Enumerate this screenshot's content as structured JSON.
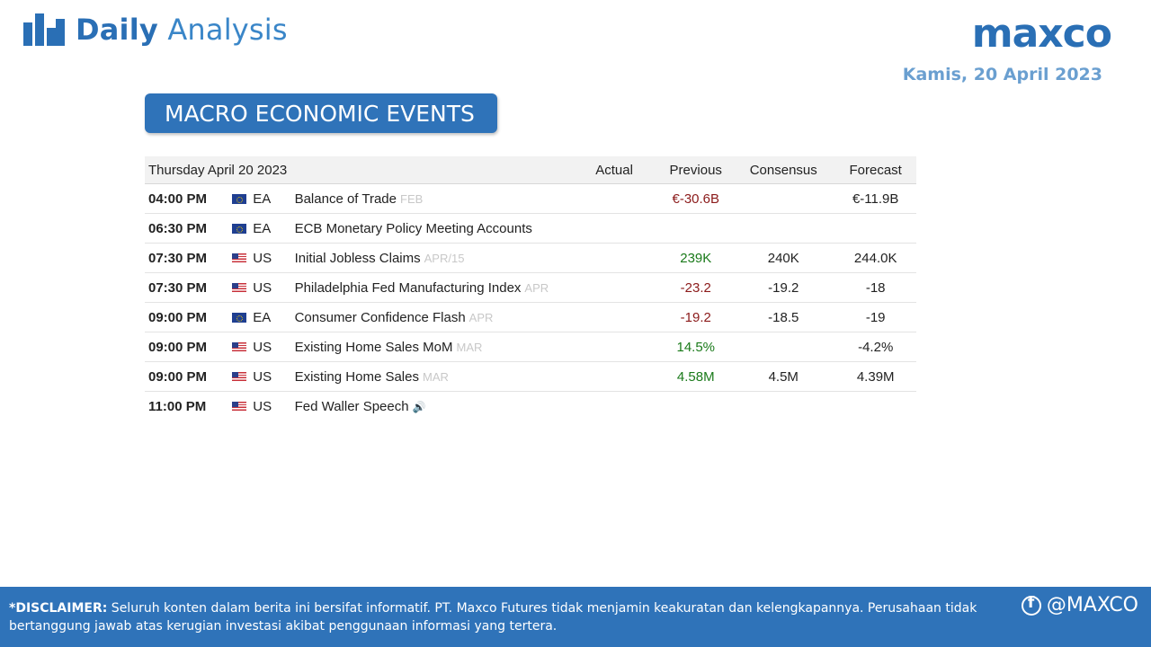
{
  "header": {
    "title_bold": "Daily",
    "title_light": "Analysis",
    "logo_text": "maxco",
    "date": "Kamis, 20 April 2023"
  },
  "section": {
    "title": "MACRO ECONOMIC EVENTS"
  },
  "calendar": {
    "date_label": "Thursday April 20 2023",
    "columns": {
      "actual": "Actual",
      "previous": "Previous",
      "consensus": "Consensus",
      "forecast": "Forecast"
    },
    "rows": [
      {
        "time": "04:00 PM",
        "flag": "eu-flag-icon",
        "currency": "EA",
        "event": "Balance of Trade",
        "period": "FEB",
        "actual": "",
        "previous": "€-30.6B",
        "previous_trend": "neg",
        "consensus": "",
        "forecast": "€-11.9B"
      },
      {
        "time": "06:30 PM",
        "flag": "eu-flag-icon",
        "currency": "EA",
        "event": "ECB Monetary Policy Meeting Accounts",
        "period": "",
        "actual": "",
        "previous": "",
        "previous_trend": "",
        "consensus": "",
        "forecast": ""
      },
      {
        "time": "07:30 PM",
        "flag": "us-flag-icon",
        "currency": "US",
        "event": "Initial Jobless Claims",
        "period": "APR/15",
        "actual": "",
        "previous": "239K",
        "previous_trend": "pos",
        "consensus": "240K",
        "forecast": "244.0K"
      },
      {
        "time": "07:30 PM",
        "flag": "us-flag-icon",
        "currency": "US",
        "event": "Philadelphia Fed Manufacturing Index",
        "period": "APR",
        "actual": "",
        "previous": "-23.2",
        "previous_trend": "neg",
        "consensus": "-19.2",
        "forecast": "-18"
      },
      {
        "time": "09:00 PM",
        "flag": "eu-flag-icon",
        "currency": "EA",
        "event": "Consumer Confidence Flash",
        "period": "APR",
        "actual": "",
        "previous": "-19.2",
        "previous_trend": "neg",
        "consensus": "-18.5",
        "forecast": "-19"
      },
      {
        "time": "09:00 PM",
        "flag": "us-flag-icon",
        "currency": "US",
        "event": "Existing Home Sales MoM",
        "period": "MAR",
        "actual": "",
        "previous": "14.5%",
        "previous_trend": "pos",
        "consensus": "",
        "forecast": "-4.2%"
      },
      {
        "time": "09:00 PM",
        "flag": "us-flag-icon",
        "currency": "US",
        "event": "Existing Home Sales",
        "period": "MAR",
        "actual": "",
        "previous": "4.58M",
        "previous_trend": "pos",
        "consensus": "4.5M",
        "forecast": "4.39M"
      },
      {
        "time": "11:00 PM",
        "flag": "us-flag-icon",
        "currency": "US",
        "event": "Fed Waller Speech",
        "period": "",
        "speaker": true,
        "actual": "",
        "previous": "",
        "previous_trend": "",
        "consensus": "",
        "forecast": ""
      }
    ]
  },
  "footer": {
    "disclaimer_label": "*DISCLAIMER:",
    "disclaimer_text": " Seluruh konten dalam berita ini bersifat informatif. PT. Maxco Futures tidak menjamin keakuratan dan kelengkapannya. Perusahaan tidak bertanggung jawab atas kerugian investasi akibat penggunaan informasi yang tertera.",
    "social_handle": "@MAXCO"
  },
  "colors": {
    "brand_blue": "#2f73b9",
    "negative": "#8b1a1a",
    "positive": "#1a7a1a"
  }
}
